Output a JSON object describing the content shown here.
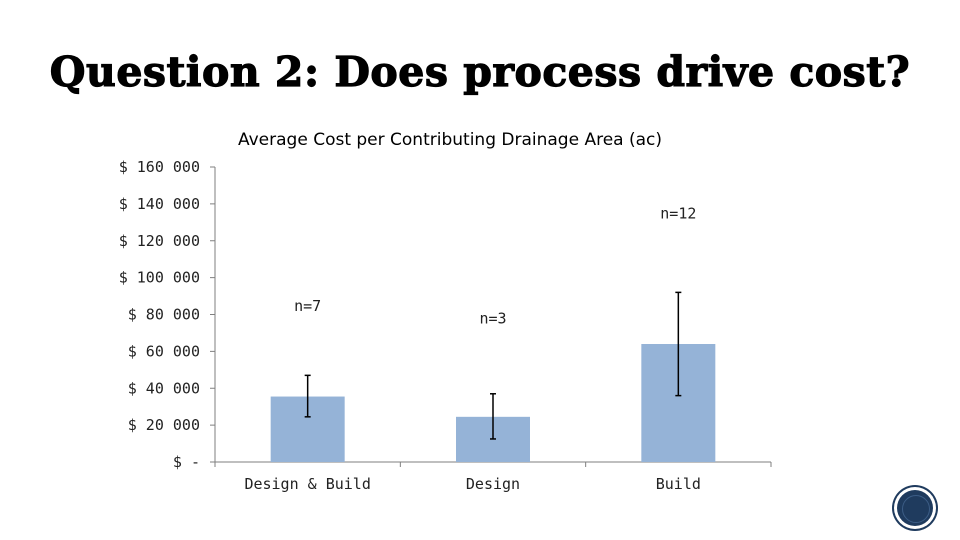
{
  "slide": {
    "title": "Question 2: Does process drive cost?"
  },
  "colors": {
    "bar": "#95b3d7",
    "axis": "#7f7f7f",
    "error": "#000000",
    "badge": "#1f3b5e"
  },
  "chart_data": {
    "type": "bar",
    "title": "Average Cost per Contributing Drainage Area (ac)",
    "xlabel": "",
    "ylabel": "",
    "ylim": [
      0,
      160000
    ],
    "yticks": [
      {
        "value": 160000,
        "label": "$ 160 000"
      },
      {
        "value": 140000,
        "label": "$ 140 000"
      },
      {
        "value": 120000,
        "label": "$ 120 000"
      },
      {
        "value": 100000,
        "label": "$ 100 000"
      },
      {
        "value": 80000,
        "label": "$ 80 000"
      },
      {
        "value": 60000,
        "label": "$ 60 000"
      },
      {
        "value": 40000,
        "label": "$ 40 000"
      },
      {
        "value": 20000,
        "label": "$ 20 000"
      },
      {
        "value": 0,
        "label": "$ -"
      }
    ],
    "categories": [
      "Design & Build",
      "Design",
      "Build"
    ],
    "values": [
      35500,
      24500,
      64000
    ],
    "error_low": [
      24500,
      12500,
      36000
    ],
    "error_high": [
      47000,
      37000,
      92000
    ],
    "annotations": [
      {
        "category": "Design & Build",
        "text": "n=7",
        "value": 82000
      },
      {
        "category": "Design",
        "text": "n=3",
        "value": 75000
      },
      {
        "category": "Build",
        "text": "n=12",
        "value": 132000
      }
    ],
    "grid": false
  }
}
